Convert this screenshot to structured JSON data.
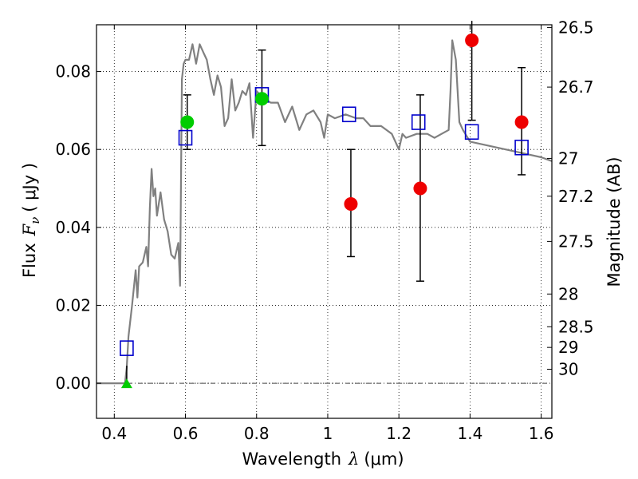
{
  "chart_data": {
    "type": "scatter",
    "xlabel_text": "Wavelength",
    "xlabel_symbol": "λ",
    "xlabel_unit": "(μm)",
    "ylabel_text": "Flux",
    "ylabel_symbol": "F",
    "ylabel_subscript": "ν",
    "ylabel_unit": "( μJy )",
    "y2label": "Magnitude (AB)",
    "xlim": [
      0.35,
      1.63
    ],
    "ylim": [
      -0.009,
      0.092
    ],
    "grid": true,
    "x_ticks": [
      {
        "value": 0.4,
        "label": "0.4"
      },
      {
        "value": 0.6,
        "label": "0.6"
      },
      {
        "value": 0.8,
        "label": "0.8"
      },
      {
        "value": 1.0,
        "label": "1"
      },
      {
        "value": 1.2,
        "label": "1.2"
      },
      {
        "value": 1.4,
        "label": "1.4"
      },
      {
        "value": 1.6,
        "label": "1.6"
      }
    ],
    "y_ticks": [
      {
        "value": 0.0,
        "label": "0.00"
      },
      {
        "value": 0.02,
        "label": "0.02"
      },
      {
        "value": 0.04,
        "label": "0.04"
      },
      {
        "value": 0.06,
        "label": "0.06"
      },
      {
        "value": 0.08,
        "label": "0.08"
      }
    ],
    "mag_ticks": [
      {
        "flux": 0.0913,
        "label": "26.5"
      },
      {
        "flux": 0.076,
        "label": "26.7"
      },
      {
        "flux": 0.0577,
        "label": "27"
      },
      {
        "flux": 0.048,
        "label": "27.2"
      },
      {
        "flux": 0.0364,
        "label": "27.5"
      },
      {
        "flux": 0.0229,
        "label": "28"
      },
      {
        "flux": 0.0145,
        "label": "28.5"
      },
      {
        "flux": 0.0092,
        "label": "29"
      },
      {
        "flux": 0.0036,
        "label": "30"
      }
    ],
    "series": [
      {
        "name": "model_sed",
        "type": "line",
        "color": "#808080",
        "x": [
          0.35,
          0.43,
          0.435,
          0.44,
          0.45,
          0.46,
          0.465,
          0.47,
          0.48,
          0.49,
          0.495,
          0.5,
          0.505,
          0.51,
          0.515,
          0.52,
          0.53,
          0.54,
          0.55,
          0.56,
          0.57,
          0.58,
          0.585,
          0.59,
          0.595,
          0.6,
          0.61,
          0.62,
          0.63,
          0.64,
          0.65,
          0.66,
          0.67,
          0.68,
          0.69,
          0.7,
          0.71,
          0.72,
          0.73,
          0.74,
          0.75,
          0.76,
          0.77,
          0.78,
          0.79,
          0.8,
          0.82,
          0.84,
          0.86,
          0.88,
          0.9,
          0.92,
          0.94,
          0.96,
          0.98,
          0.99,
          1.0,
          1.02,
          1.05,
          1.08,
          1.1,
          1.12,
          1.15,
          1.18,
          1.2,
          1.21,
          1.22,
          1.25,
          1.28,
          1.3,
          1.32,
          1.34,
          1.345,
          1.35,
          1.36,
          1.37,
          1.38,
          1.4,
          1.45,
          1.5,
          1.55,
          1.6,
          1.63
        ],
        "y": [
          0.0,
          0.0,
          0.004,
          0.012,
          0.02,
          0.029,
          0.022,
          0.03,
          0.031,
          0.035,
          0.03,
          0.045,
          0.055,
          0.048,
          0.05,
          0.043,
          0.049,
          0.042,
          0.039,
          0.033,
          0.032,
          0.036,
          0.025,
          0.078,
          0.082,
          0.083,
          0.083,
          0.087,
          0.082,
          0.087,
          0.085,
          0.083,
          0.078,
          0.074,
          0.079,
          0.076,
          0.066,
          0.068,
          0.078,
          0.07,
          0.072,
          0.075,
          0.074,
          0.077,
          0.063,
          0.075,
          0.073,
          0.072,
          0.072,
          0.067,
          0.071,
          0.065,
          0.069,
          0.07,
          0.067,
          0.063,
          0.069,
          0.068,
          0.069,
          0.068,
          0.068,
          0.066,
          0.066,
          0.064,
          0.06,
          0.064,
          0.063,
          0.064,
          0.064,
          0.063,
          0.064,
          0.065,
          0.075,
          0.088,
          0.083,
          0.067,
          0.065,
          0.062,
          0.061,
          0.06,
          0.059,
          0.058,
          0.057
        ]
      },
      {
        "name": "model_band_flux",
        "type": "scatter",
        "marker": "open-square",
        "color": "#0000cc",
        "x": [
          0.435,
          0.6,
          0.815,
          1.06,
          1.255,
          1.405,
          1.545
        ],
        "y": [
          0.009,
          0.063,
          0.074,
          0.069,
          0.067,
          0.0645,
          0.0605
        ]
      },
      {
        "name": "detections",
        "type": "scatter",
        "marker": "filled-circle",
        "color": "#00cc00",
        "x": [
          0.605,
          0.815
        ],
        "y": [
          0.067,
          0.073
        ],
        "yerr_low": [
          0.06,
          0.061
        ],
        "yerr_high": [
          0.074,
          0.0855
        ]
      },
      {
        "name": "nir_detections",
        "type": "scatter",
        "marker": "filled-circle",
        "color": "#ee0000",
        "x": [
          1.065,
          1.26,
          1.405,
          1.545
        ],
        "y": [
          0.046,
          0.05,
          0.088,
          0.067
        ],
        "yerr_low": [
          0.0325,
          0.0262,
          0.0675,
          0.0535
        ],
        "yerr_high": [
          0.06,
          0.074,
          0.093,
          0.081
        ]
      },
      {
        "name": "upper_limit",
        "type": "scatter",
        "marker": "filled-triangle",
        "color": "#00cc00",
        "x": [
          0.435
        ],
        "y": [
          0.0
        ],
        "yerr_low": [
          0.0
        ],
        "yerr_high": [
          0.0045
        ]
      }
    ]
  }
}
